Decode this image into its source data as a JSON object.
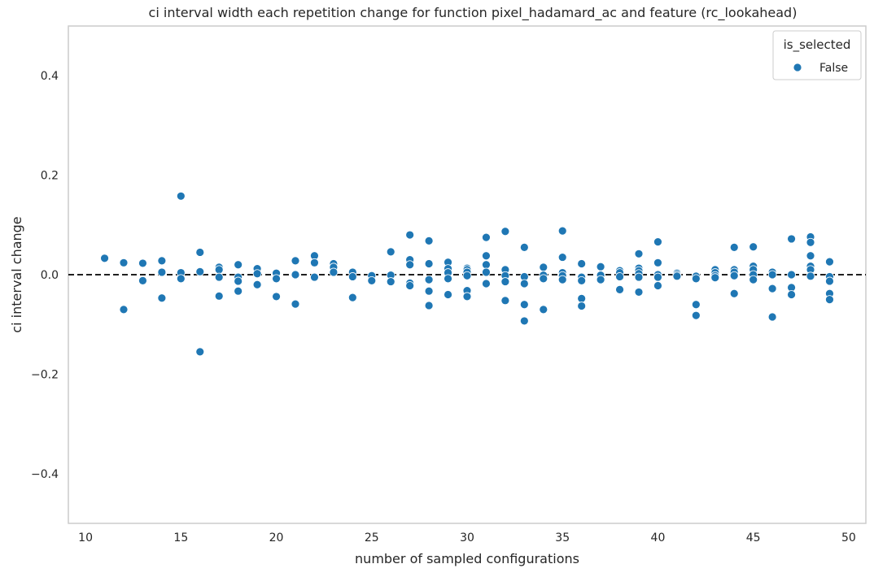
{
  "chart_data": {
    "type": "scatter",
    "title": "ci interval width each repetition change for function pixel_hadamard_ac and feature (rc_lookahead)",
    "xlabel": "number of sampled configurations",
    "ylabel": "ci interval change",
    "xlim": [
      9.1,
      50.9
    ],
    "ylim": [
      -0.5,
      0.5
    ],
    "xticks": [
      10,
      15,
      20,
      25,
      30,
      35,
      40,
      45,
      50
    ],
    "yticks": [
      -0.4,
      -0.2,
      0.0,
      0.2,
      0.4
    ],
    "ytick_labels": [
      "−0.4",
      "−0.2",
      "0.0",
      "0.2",
      "0.4"
    ],
    "grid": false,
    "reference_line": {
      "y": 0,
      "style": "dashed",
      "color": "#000000"
    },
    "legend": {
      "title": "is_selected",
      "position": "top-right",
      "entries": [
        "False"
      ]
    },
    "series": [
      {
        "name": "False",
        "color": "#1f77b4",
        "points": [
          [
            11,
            0.033
          ],
          [
            12,
            0.024
          ],
          [
            12,
            -0.07
          ],
          [
            13,
            0.023
          ],
          [
            13,
            -0.012
          ],
          [
            14,
            0.028
          ],
          [
            14,
            0.005
          ],
          [
            14,
            -0.047
          ],
          [
            15,
            0.158
          ],
          [
            15,
            0.004
          ],
          [
            15,
            -0.008
          ],
          [
            16,
            0.045
          ],
          [
            16,
            0.006
          ],
          [
            16,
            -0.155
          ],
          [
            17,
            0.015
          ],
          [
            17,
            0.01
          ],
          [
            17,
            -0.005
          ],
          [
            17,
            -0.043
          ],
          [
            18,
            0.02
          ],
          [
            18,
            -0.005
          ],
          [
            18,
            -0.013
          ],
          [
            18,
            -0.033
          ],
          [
            19,
            0.012
          ],
          [
            19,
            0.002
          ],
          [
            19,
            -0.02
          ],
          [
            20,
            0.003
          ],
          [
            20,
            -0.008
          ],
          [
            20,
            -0.044
          ],
          [
            21,
            0.028
          ],
          [
            21,
            0.0
          ],
          [
            21,
            -0.059
          ],
          [
            22,
            0.038
          ],
          [
            22,
            0.024
          ],
          [
            22,
            -0.005
          ],
          [
            23,
            0.022
          ],
          [
            23,
            0.015
          ],
          [
            23,
            0.005
          ],
          [
            24,
            0.005
          ],
          [
            24,
            -0.004
          ],
          [
            24,
            -0.046
          ],
          [
            25,
            -0.002
          ],
          [
            25,
            -0.012
          ],
          [
            26,
            0.046
          ],
          [
            26,
            -0.001
          ],
          [
            26,
            -0.014
          ],
          [
            27,
            0.08
          ],
          [
            27,
            0.03
          ],
          [
            27,
            0.02
          ],
          [
            27,
            -0.017
          ],
          [
            27,
            -0.022
          ],
          [
            28,
            0.068
          ],
          [
            28,
            0.022
          ],
          [
            28,
            -0.01
          ],
          [
            28,
            -0.033
          ],
          [
            28,
            -0.062
          ],
          [
            29,
            0.025
          ],
          [
            29,
            0.012
          ],
          [
            29,
            0.004
          ],
          [
            29,
            -0.008
          ],
          [
            29,
            -0.04
          ],
          [
            30,
            0.013
          ],
          [
            30,
            0.01
          ],
          [
            30,
            0.005
          ],
          [
            30,
            -0.002
          ],
          [
            30,
            -0.032
          ],
          [
            30,
            -0.044
          ],
          [
            31,
            0.075
          ],
          [
            31,
            0.038
          ],
          [
            31,
            0.02
          ],
          [
            31,
            0.005
          ],
          [
            31,
            -0.018
          ],
          [
            32,
            0.087
          ],
          [
            32,
            0.01
          ],
          [
            32,
            -0.002
          ],
          [
            32,
            -0.014
          ],
          [
            32,
            -0.052
          ],
          [
            33,
            0.055
          ],
          [
            33,
            -0.004
          ],
          [
            33,
            -0.018
          ],
          [
            33,
            -0.06
          ],
          [
            33,
            -0.093
          ],
          [
            34,
            0.015
          ],
          [
            34,
            -0.001
          ],
          [
            34,
            -0.008
          ],
          [
            34,
            -0.07
          ],
          [
            35,
            0.088
          ],
          [
            35,
            0.035
          ],
          [
            35,
            0.004
          ],
          [
            35,
            -0.002
          ],
          [
            35,
            -0.01
          ],
          [
            36,
            0.022
          ],
          [
            36,
            -0.005
          ],
          [
            36,
            -0.012
          ],
          [
            36,
            -0.048
          ],
          [
            36,
            -0.063
          ],
          [
            37,
            0.016
          ],
          [
            37,
            -0.001
          ],
          [
            37,
            -0.01
          ],
          [
            38,
            0.008
          ],
          [
            38,
            0.004
          ],
          [
            38,
            -0.004
          ],
          [
            38,
            -0.03
          ],
          [
            39,
            0.042
          ],
          [
            39,
            0.013
          ],
          [
            39,
            0.008
          ],
          [
            39,
            0.002
          ],
          [
            39,
            -0.005
          ],
          [
            39,
            -0.035
          ],
          [
            40,
            0.066
          ],
          [
            40,
            0.024
          ],
          [
            40,
            0.0
          ],
          [
            40,
            -0.005
          ],
          [
            40,
            -0.022
          ],
          [
            41,
            0.003
          ],
          [
            41,
            0.0
          ],
          [
            41,
            -0.003
          ],
          [
            42,
            -0.003
          ],
          [
            42,
            -0.008
          ],
          [
            42,
            -0.06
          ],
          [
            42,
            -0.082
          ],
          [
            43,
            0.01
          ],
          [
            43,
            0.004
          ],
          [
            43,
            -0.002
          ],
          [
            43,
            -0.006
          ],
          [
            44,
            0.055
          ],
          [
            44,
            0.01
          ],
          [
            44,
            0.005
          ],
          [
            44,
            -0.002
          ],
          [
            44,
            -0.038
          ],
          [
            45,
            0.056
          ],
          [
            45,
            0.017
          ],
          [
            45,
            0.01
          ],
          [
            45,
            0.0
          ],
          [
            45,
            -0.01
          ],
          [
            46,
            0.005
          ],
          [
            46,
            0.0
          ],
          [
            46,
            -0.028
          ],
          [
            46,
            -0.085
          ],
          [
            47,
            0.072
          ],
          [
            47,
            0.0
          ],
          [
            47,
            -0.026
          ],
          [
            47,
            -0.04
          ],
          [
            48,
            0.076
          ],
          [
            48,
            0.065
          ],
          [
            48,
            0.038
          ],
          [
            48,
            0.017
          ],
          [
            48,
            0.01
          ],
          [
            48,
            -0.003
          ],
          [
            49,
            0.026
          ],
          [
            49,
            -0.004
          ],
          [
            49,
            -0.013
          ],
          [
            49,
            -0.038
          ],
          [
            49,
            -0.05
          ]
        ]
      }
    ]
  }
}
